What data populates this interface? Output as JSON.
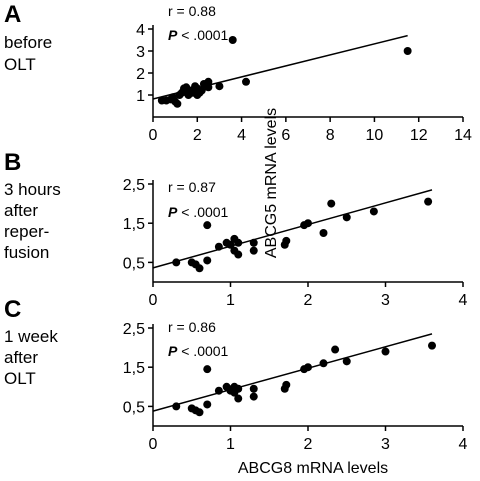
{
  "figure": {
    "ylabel": "ABCG5 mRNA levels",
    "xlabel": "ABCG8 mRNA levels"
  },
  "chart_data": [
    {
      "type": "scatter",
      "panel": "A",
      "condition": [
        "before",
        "OLT"
      ],
      "stats": {
        "r": "r = 0.88",
        "p_prefix": "P",
        "p_value": " < .0001"
      },
      "xlim": [
        0,
        14
      ],
      "ylim": [
        0,
        4
      ],
      "xticks": [
        0,
        2,
        4,
        6,
        8,
        10,
        12,
        14
      ],
      "yticks": [
        1,
        2,
        3,
        4
      ],
      "fit": {
        "x": [
          0,
          11.5
        ],
        "y": [
          0.82,
          3.7
        ]
      },
      "x": [
        0.4,
        0.6,
        0.8,
        0.9,
        1.0,
        1.1,
        1.2,
        1.3,
        1.4,
        1.5,
        1.5,
        1.6,
        1.7,
        1.8,
        1.9,
        2.0,
        2.0,
        2.1,
        2.2,
        2.3,
        2.5,
        2.5,
        3.0,
        3.6,
        4.2,
        11.5
      ],
      "y": [
        0.75,
        0.75,
        0.8,
        0.9,
        0.7,
        0.6,
        1.0,
        1.1,
        1.3,
        1.2,
        1.35,
        1.0,
        1.2,
        1.1,
        1.4,
        1.3,
        1.0,
        1.1,
        1.2,
        1.5,
        1.6,
        1.35,
        1.4,
        3.5,
        1.6,
        3.0
      ]
    },
    {
      "type": "scatter",
      "panel": "B",
      "condition": [
        "3 hours",
        "after",
        "reper-",
        "fusion"
      ],
      "stats": {
        "r": "r = 0.87",
        "p_prefix": "P",
        "p_value": " < .0001"
      },
      "xlim": [
        0,
        4
      ],
      "ylim": [
        0,
        2.5
      ],
      "xticks": [
        0,
        1,
        2,
        3,
        4
      ],
      "yticks": [
        0.5,
        1.5,
        2.5
      ],
      "ytick_labels": [
        "0,5",
        "1,5",
        "2,5"
      ],
      "fit": {
        "x": [
          0,
          3.6
        ],
        "y": [
          0.36,
          2.35
        ]
      },
      "x": [
        0.3,
        0.5,
        0.55,
        0.6,
        0.7,
        0.7,
        0.85,
        0.95,
        1.0,
        1.05,
        1.05,
        1.1,
        1.1,
        1.3,
        1.3,
        1.7,
        1.72,
        1.95,
        2.0,
        2.2,
        2.3,
        2.5,
        2.85,
        3.55
      ],
      "y": [
        0.5,
        0.5,
        0.45,
        0.35,
        0.55,
        1.45,
        0.9,
        1.0,
        0.95,
        0.8,
        1.1,
        1.0,
        0.7,
        1.0,
        0.8,
        0.95,
        1.05,
        1.45,
        1.5,
        1.25,
        2.0,
        1.65,
        1.8,
        2.05
      ]
    },
    {
      "type": "scatter",
      "panel": "C",
      "condition": [
        "1 week",
        "after",
        "OLT"
      ],
      "stats": {
        "r": "r = 0.86",
        "p_prefix": "P",
        "p_value": " < .0001"
      },
      "xlim": [
        0,
        4
      ],
      "ylim": [
        0,
        2.5
      ],
      "xticks": [
        0,
        1,
        2,
        3,
        4
      ],
      "yticks": [
        0.5,
        1.5,
        2.5
      ],
      "ytick_labels": [
        "0,5",
        "1,5",
        "2,5"
      ],
      "fit": {
        "x": [
          0,
          3.6
        ],
        "y": [
          0.38,
          2.35
        ]
      },
      "x": [
        0.3,
        0.5,
        0.55,
        0.6,
        0.7,
        0.7,
        0.85,
        0.95,
        1.0,
        1.05,
        1.05,
        1.1,
        1.1,
        1.3,
        1.3,
        1.7,
        1.72,
        1.95,
        2.0,
        2.2,
        2.35,
        2.5,
        3.0,
        3.6
      ],
      "y": [
        0.5,
        0.45,
        0.4,
        0.35,
        0.55,
        1.45,
        0.9,
        1.0,
        0.9,
        0.85,
        1.0,
        0.95,
        0.7,
        0.95,
        0.75,
        0.95,
        1.05,
        1.45,
        1.5,
        1.6,
        1.95,
        1.65,
        1.9,
        2.05
      ]
    }
  ]
}
